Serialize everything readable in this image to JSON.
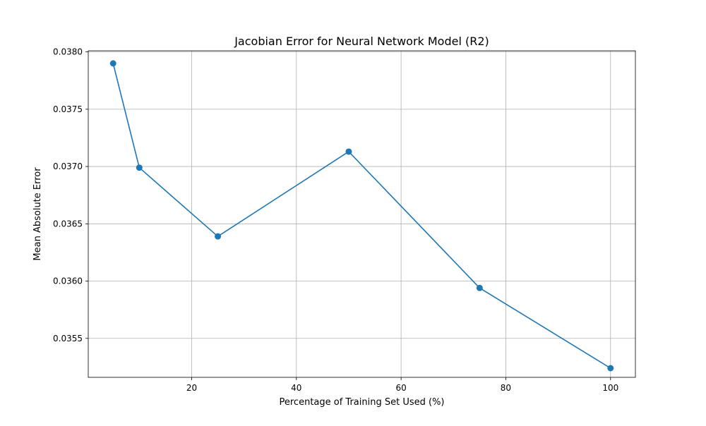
{
  "chart_data": {
    "type": "line",
    "title": "Jacobian Error for Neural Network Model (R2)",
    "xlabel": "Percentage of Training Set Used (%)",
    "ylabel": "Mean Absolute Error",
    "x": [
      5,
      10,
      25,
      50,
      75,
      100
    ],
    "series": [
      {
        "name": "Mean Absolute Error",
        "values": [
          0.0379,
          0.03699,
          0.03639,
          0.03713,
          0.03594,
          0.03524
        ]
      }
    ],
    "xlim": [
      0.25,
      104.75
    ],
    "ylim": [
      0.03516,
      0.03801
    ],
    "xticks": [
      20,
      40,
      60,
      80,
      100
    ],
    "xtick_labels": [
      "20",
      "40",
      "60",
      "80",
      "100"
    ],
    "yticks": [
      0.0355,
      0.036,
      0.0365,
      0.037,
      0.0375,
      0.038
    ],
    "ytick_labels": [
      "0.0355",
      "0.0360",
      "0.0365",
      "0.0370",
      "0.0375",
      "0.0380"
    ],
    "grid": true,
    "line_color": "#1f77b4",
    "grid_color": "#b0b0b0"
  }
}
